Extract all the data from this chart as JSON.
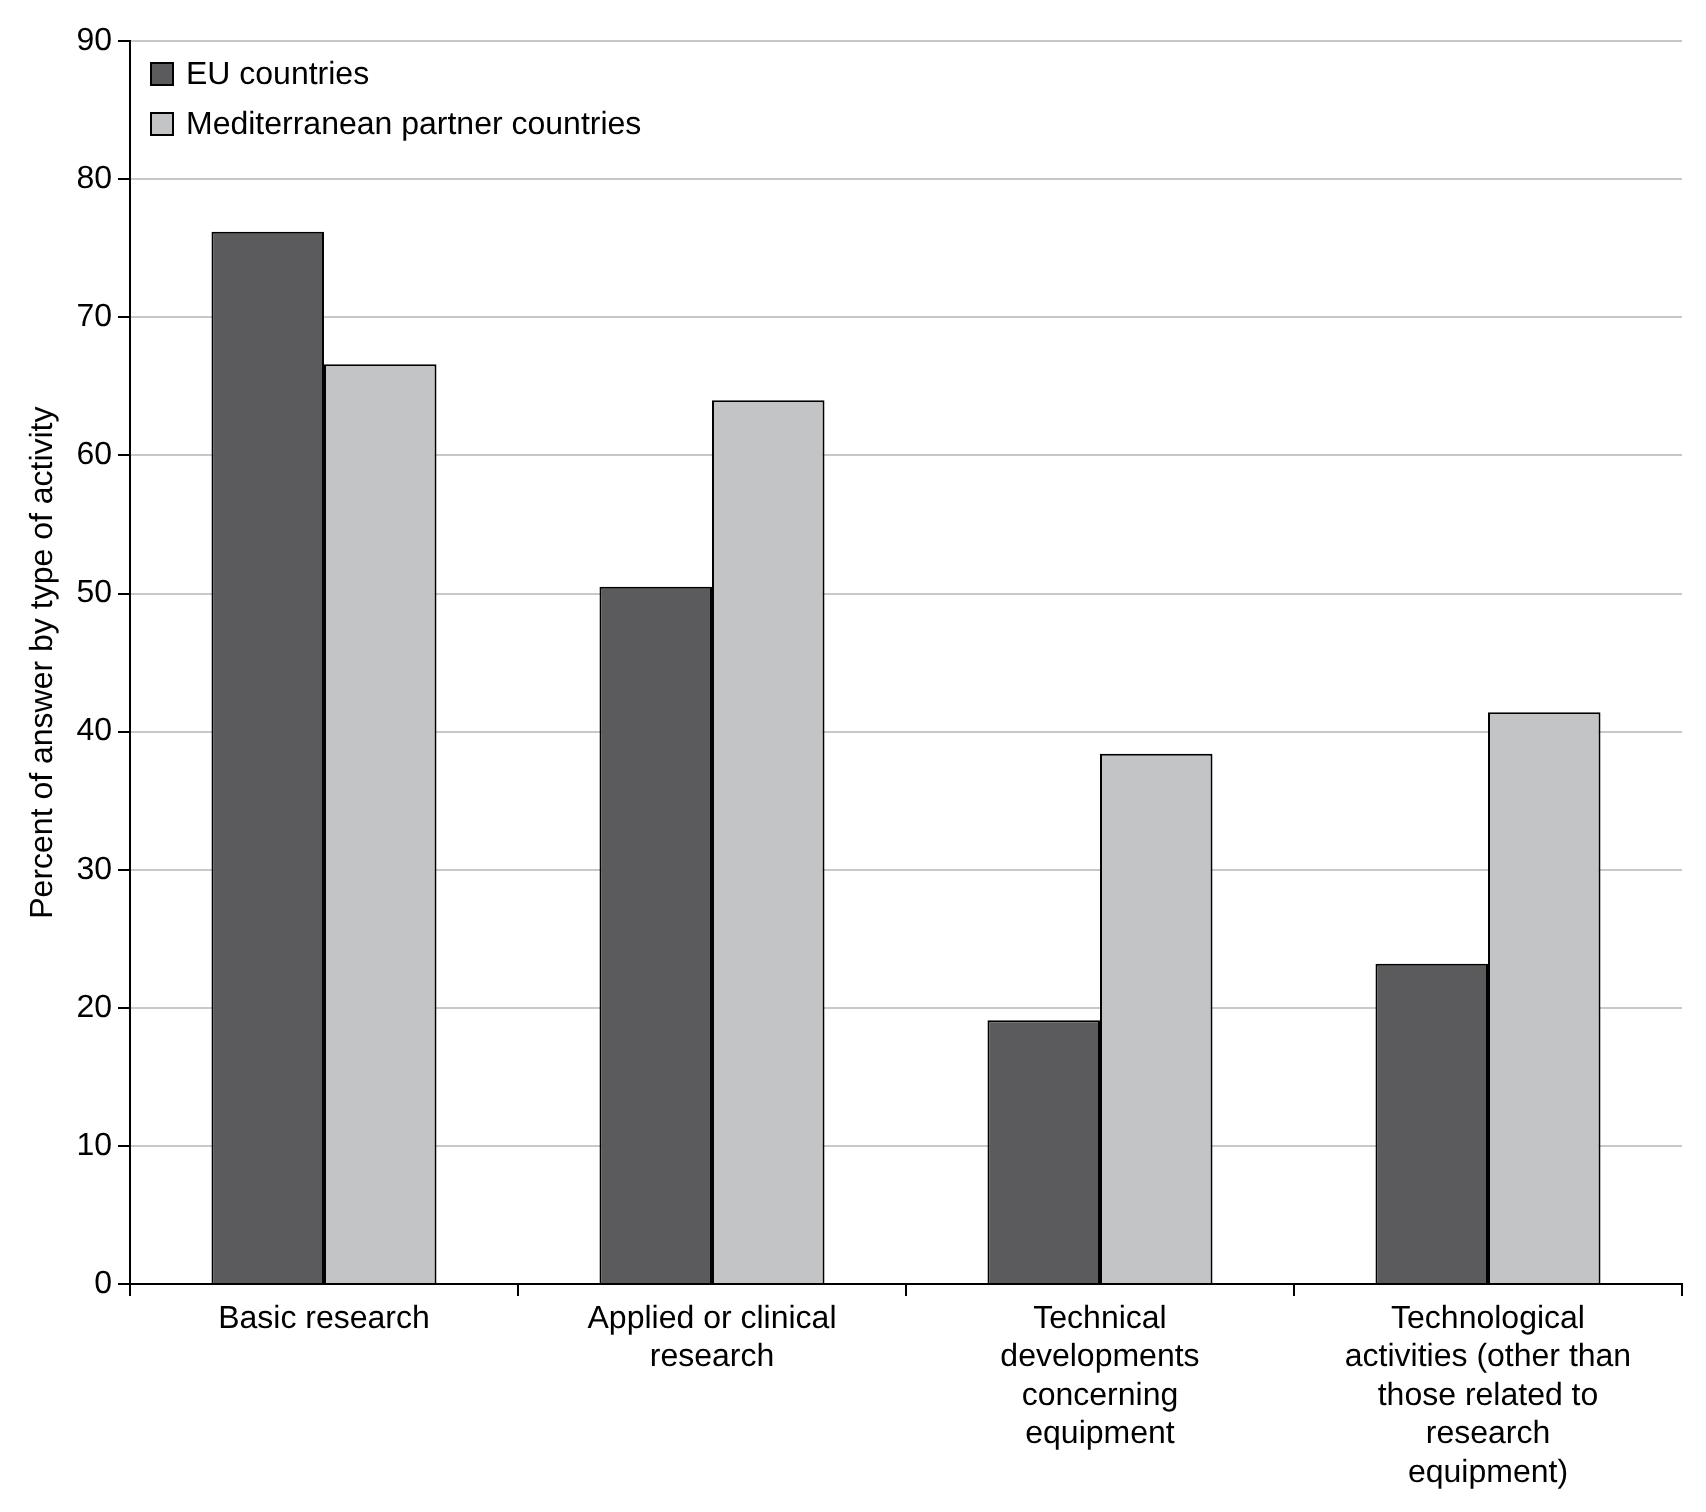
{
  "chart_data": {
    "type": "bar",
    "ylabel": "Percent of answer by type of activity",
    "categories": [
      "Basic research",
      "Applied or clinical research",
      "Technical developments concerning equipment",
      "Technological activities (other than those related to research equipment)"
    ],
    "series": [
      {
        "name": "EU countries",
        "color": "#5b5b5d",
        "values": [
          76.2,
          50.5,
          19.1,
          23.2
        ]
      },
      {
        "name": "Mediterranean partner countries",
        "color": "#c3c4c6",
        "values": [
          66.6,
          64.0,
          38.4,
          41.4
        ]
      }
    ],
    "ylim": [
      0,
      90
    ],
    "yticks": [
      0,
      10,
      20,
      30,
      40,
      50,
      60,
      70,
      80,
      90
    ],
    "grid": "y",
    "legend": "top left"
  }
}
